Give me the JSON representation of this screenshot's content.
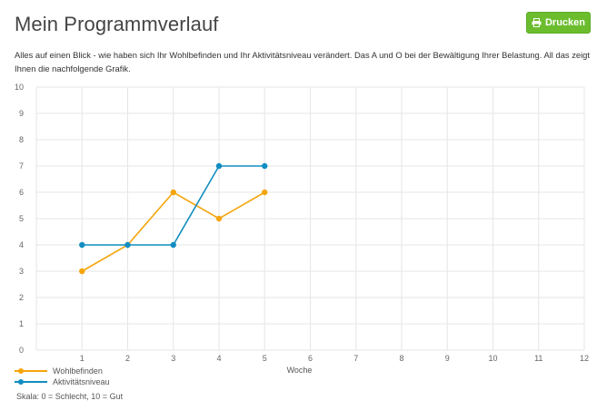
{
  "header": {
    "title": "Mein Programmverlauf",
    "print_label": "Drucken",
    "print_icon": "printer-icon"
  },
  "intro_text": "Alles auf einen Blick - wie haben sich Ihr Wohlbefinden und Ihr Aktivitätsniveau verändert. Das A und O bei der Bewältigung Ihrer Belastung. All das zeigt Ihnen die nachfolgende Grafik.",
  "chart_data": {
    "type": "line",
    "xlabel": "Woche",
    "ylabel": "",
    "xlim": [
      0,
      12
    ],
    "ylim": [
      0,
      10
    ],
    "x_ticks": [
      1,
      2,
      3,
      4,
      5,
      6,
      7,
      8,
      9,
      10,
      11,
      12
    ],
    "y_ticks": [
      0,
      1,
      2,
      3,
      4,
      5,
      6,
      7,
      8,
      9,
      10
    ],
    "grid": true,
    "legend_position": "bottom-left",
    "series": [
      {
        "name": "Wohlbefinden",
        "color": "#f5a50a",
        "x": [
          1,
          2,
          3,
          4,
          5
        ],
        "values": [
          3,
          4,
          6,
          5,
          6
        ]
      },
      {
        "name": "Aktivitätsniveau",
        "color": "#118dc0",
        "x": [
          1,
          2,
          3,
          4,
          5
        ],
        "values": [
          4,
          4,
          4,
          7,
          7
        ]
      }
    ]
  },
  "footnote": "Skala: 0 = Schlecht, 10 = Gut",
  "colors": {
    "button": "#6bbd2e",
    "grid": "#e6e6e6"
  }
}
